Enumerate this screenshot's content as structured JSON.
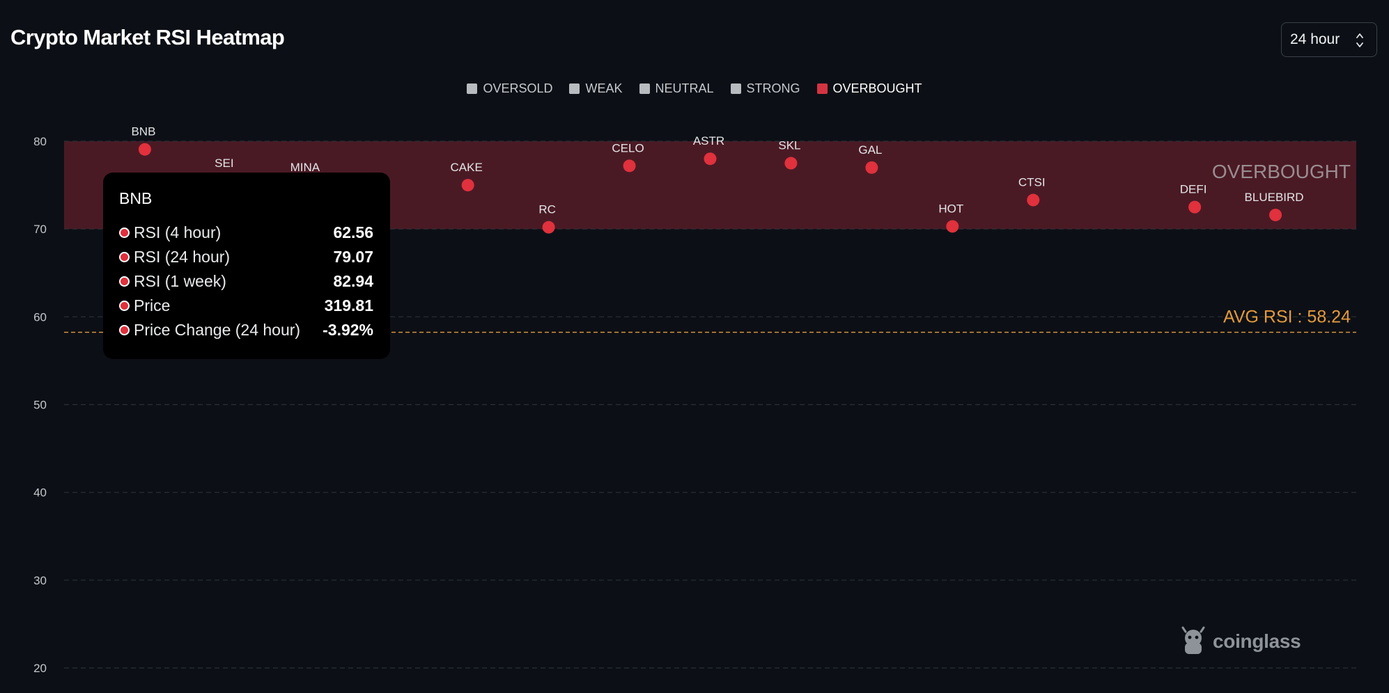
{
  "title": "Crypto Market RSI Heatmap",
  "timeframe_select": {
    "value": "24 hour",
    "icon": "chevron-up-down-icon"
  },
  "legend": [
    {
      "label": "OVERSOLD",
      "active": false
    },
    {
      "label": "WEAK",
      "active": false
    },
    {
      "label": "NEUTRAL",
      "active": false
    },
    {
      "label": "STRONG",
      "active": false
    },
    {
      "label": "OVERBOUGHT",
      "active": true,
      "color": "#d43441"
    }
  ],
  "colors": {
    "overbought_band": "#4a1a24",
    "point": "#e0313d",
    "avg_line": "#e59a3c",
    "grid": "#2a2f37"
  },
  "chart_data": {
    "type": "scatter",
    "title": "Crypto Market RSI Heatmap",
    "xlabel": "",
    "ylabel": "",
    "ylim": [
      20,
      80
    ],
    "yticks": [
      80,
      70,
      60,
      50,
      40,
      30,
      20
    ],
    "grid": true,
    "bands": [
      {
        "label": "OVERBOUGHT",
        "from": 70,
        "to": 80
      }
    ],
    "avg_rsi": {
      "label": "AVG RSI : 58.24",
      "value": 58.24
    },
    "points": [
      {
        "label": "BNB",
        "x": 1,
        "y": 79.07
      },
      {
        "label": "SEI",
        "x": 2,
        "y": 75.5
      },
      {
        "label": "MINA",
        "x": 3,
        "y": 75
      },
      {
        "label": "CAKE",
        "x": 5,
        "y": 75
      },
      {
        "label": "RC",
        "x": 6,
        "y": 70.2
      },
      {
        "label": "CELO",
        "x": 7,
        "y": 77.2
      },
      {
        "label": "ASTR",
        "x": 8,
        "y": 78
      },
      {
        "label": "SKL",
        "x": 9,
        "y": 77.5
      },
      {
        "label": "GAL",
        "x": 10,
        "y": 77
      },
      {
        "label": "HOT",
        "x": 11,
        "y": 70.3
      },
      {
        "label": "CTSI",
        "x": 12,
        "y": 73.3
      },
      {
        "label": "DEFI",
        "x": 14,
        "y": 72.5
      },
      {
        "label": "BLUEBIRD",
        "x": 15,
        "y": 71.6
      }
    ]
  },
  "tooltip": {
    "title": "BNB",
    "rows": [
      {
        "label": "RSI (4 hour)",
        "value": "62.56"
      },
      {
        "label": "RSI (24 hour)",
        "value": "79.07"
      },
      {
        "label": "RSI (1 week)",
        "value": "82.94"
      },
      {
        "label": "Price",
        "value": "319.81"
      },
      {
        "label": "Price Change (24 hour)",
        "value": "-3.92%"
      }
    ]
  },
  "brand": {
    "name": "coinglass",
    "icon": "coinglass-logo-icon"
  }
}
